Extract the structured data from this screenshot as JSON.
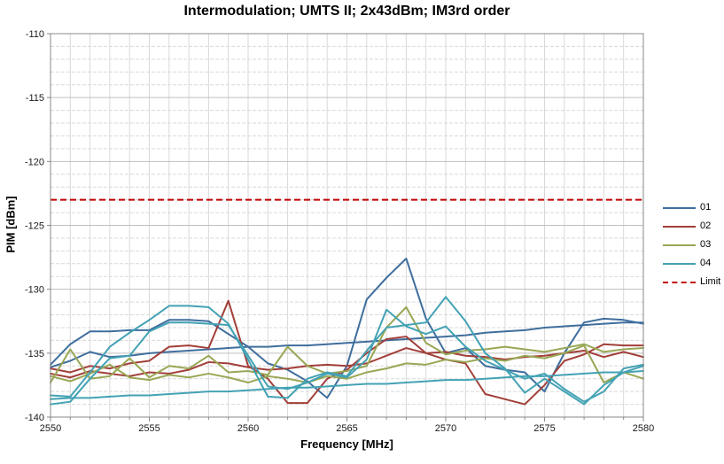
{
  "chart_data": {
    "type": "line",
    "title": "Intermodulation; UMTS II; 2x43dBm; IM3rd order",
    "xlabel": "Frequency [MHz]",
    "ylabel": "PIM [dBm]",
    "xlim": [
      2550,
      2580
    ],
    "ylim": [
      -140,
      -110
    ],
    "x_ticks": [
      2550,
      2555,
      2560,
      2565,
      2570,
      2575,
      2580
    ],
    "y_ticks": [
      -110,
      -115,
      -120,
      -125,
      -130,
      -135,
      -140
    ],
    "grid": {
      "vertical_minor_step_mhz": 1,
      "horizontal_minor_step_db": 1,
      "horizontal_major_step_db": 5
    },
    "legend": {
      "position": "right"
    },
    "x": [
      2550,
      2551,
      2552,
      2553,
      2554,
      2555,
      2556,
      2557,
      2558,
      2559,
      2560,
      2561,
      2562,
      2563,
      2564,
      2565,
      2566,
      2567,
      2568,
      2569,
      2570,
      2571,
      2572,
      2573,
      2574,
      2575,
      2576,
      2577,
      2578,
      2579,
      2580
    ],
    "series": [
      {
        "name": "01",
        "color": "#3F6E9D",
        "traces": [
          [
            -135.9,
            -134.3,
            -133.3,
            -133.3,
            -133.2,
            -133.2,
            -132.4,
            -132.4,
            -132.5,
            -133.5,
            -134.5,
            -135.8,
            -136.3,
            -137.2,
            -138.5,
            -136.0,
            -130.8,
            -129.1,
            -127.6,
            -132.3,
            -135.0,
            -134.6,
            -136.0,
            -136.3,
            -136.5,
            -138.0,
            -135.0,
            -132.6,
            -132.3,
            -132.4,
            -132.7
          ],
          [
            -136.1,
            -135.6,
            -134.9,
            -135.3,
            -135.2,
            -135.0,
            -134.9,
            -134.8,
            -134.7,
            -134.6,
            -134.5,
            -134.5,
            -134.4,
            -134.4,
            -134.3,
            -134.2,
            -134.1,
            -134.0,
            -133.9,
            -133.8,
            -133.7,
            -133.6,
            -133.4,
            -133.3,
            -133.2,
            -133.0,
            -132.9,
            -132.8,
            -132.7,
            -132.6,
            -132.6
          ]
        ]
      },
      {
        "name": "02",
        "color": "#A23F39",
        "traces": [
          [
            -136.2,
            -136.5,
            -136.0,
            -136.2,
            -135.8,
            -135.6,
            -134.5,
            -134.4,
            -134.6,
            -130.9,
            -136.0,
            -137.0,
            -138.9,
            -138.9,
            -137.0,
            -136.3,
            -135.0,
            -133.9,
            -133.7,
            -135.0,
            -135.5,
            -135.8,
            -138.2,
            -138.6,
            -139.0,
            -137.5,
            -135.6,
            -135.1,
            -134.3,
            -134.4,
            -134.4
          ],
          [
            -136.6,
            -136.9,
            -136.4,
            -136.6,
            -136.8,
            -136.5,
            -136.6,
            -136.3,
            -135.7,
            -135.8,
            -136.1,
            -136.3,
            -136.2,
            -136.0,
            -135.9,
            -136.0,
            -135.8,
            -135.2,
            -134.6,
            -135.0,
            -134.9,
            -135.2,
            -135.3,
            -135.5,
            -135.3,
            -135.2,
            -135.0,
            -134.8,
            -135.3,
            -134.9,
            -135.3
          ]
        ]
      },
      {
        "name": "03",
        "color": "#98A754",
        "traces": [
          [
            -137.3,
            -134.7,
            -137.0,
            -136.8,
            -135.4,
            -136.9,
            -136.0,
            -136.2,
            -135.2,
            -136.5,
            -136.4,
            -136.7,
            -134.5,
            -136.0,
            -136.6,
            -136.4,
            -136.0,
            -133.0,
            -131.4,
            -134.2,
            -135.1,
            -134.8,
            -134.7,
            -134.5,
            -134.7,
            -134.9,
            -134.6,
            -134.3,
            -134.9,
            -134.7,
            -134.6
          ],
          [
            -136.8,
            -137.2,
            -136.6,
            -135.9,
            -136.9,
            -137.1,
            -136.7,
            -136.9,
            -136.6,
            -136.9,
            -137.3,
            -136.8,
            -137.0,
            -137.3,
            -136.8,
            -137.0,
            -136.5,
            -136.2,
            -135.8,
            -135.9,
            -135.5,
            -135.7,
            -135.4,
            -135.6,
            -135.2,
            -135.4,
            -135.0,
            -134.4,
            -137.3,
            -136.5,
            -137.0
          ]
        ]
      },
      {
        "name": "04",
        "color": "#43A2B4",
        "traces": [
          [
            -138.3,
            -138.4,
            -136.5,
            -134.5,
            -133.4,
            -132.4,
            -131.3,
            -131.3,
            -131.4,
            -132.7,
            -135.5,
            -138.4,
            -138.5,
            -137.0,
            -136.5,
            -136.8,
            -134.8,
            -133.0,
            -132.8,
            -132.6,
            -130.6,
            -132.5,
            -135.0,
            -136.2,
            -138.1,
            -137.0,
            -138.0,
            -139.0,
            -137.5,
            -136.5,
            -136.0
          ],
          [
            -139.0,
            -138.8,
            -137.0,
            -135.4,
            -135.2,
            -133.3,
            -132.6,
            -132.6,
            -132.7,
            -132.8,
            -135.2,
            -137.6,
            -137.8,
            -137.3,
            -136.6,
            -136.9,
            -135.5,
            -131.6,
            -132.9,
            -133.5,
            -132.9,
            -134.5,
            -135.6,
            -136.3,
            -137.0,
            -136.6,
            -137.8,
            -138.8,
            -138.0,
            -136.2,
            -135.9
          ],
          [
            -138.6,
            -138.5,
            -138.5,
            -138.4,
            -138.3,
            -138.3,
            -138.2,
            -138.1,
            -138.0,
            -138.0,
            -137.9,
            -137.8,
            -137.7,
            -137.7,
            -137.6,
            -137.5,
            -137.4,
            -137.4,
            -137.3,
            -137.2,
            -137.1,
            -137.1,
            -137.0,
            -136.9,
            -136.8,
            -136.8,
            -136.7,
            -136.6,
            -136.5,
            -136.5,
            -136.4
          ]
        ]
      }
    ],
    "limit": {
      "name": "Limit",
      "color": "#C00000",
      "style": "dashed",
      "value": -123
    }
  },
  "colors": {
    "grid_minor": "#D9D9D9",
    "grid_major": "#BFBFBF",
    "axis": "#898989",
    "tick_label": "#1A1A1A"
  }
}
